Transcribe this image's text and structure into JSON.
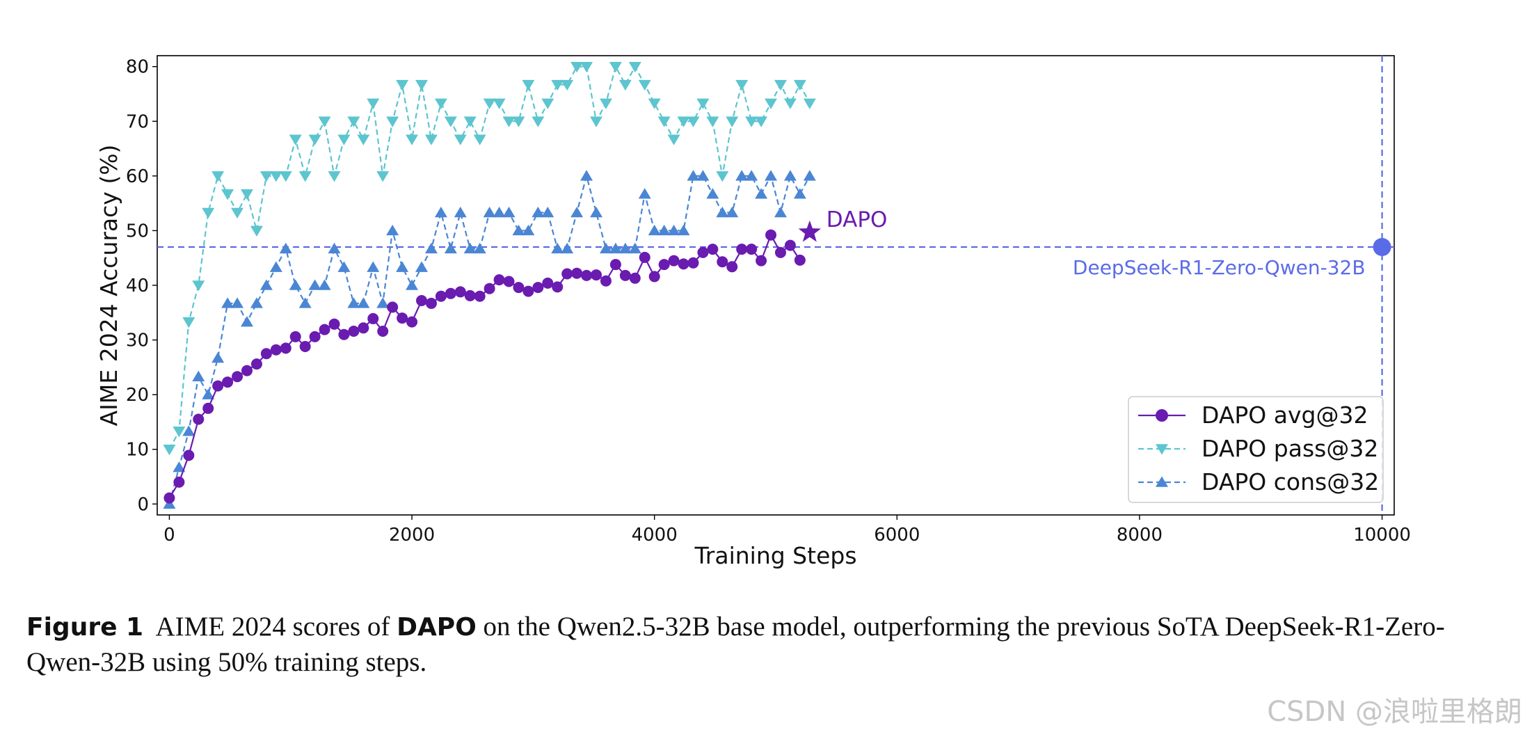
{
  "chart_data": {
    "type": "line",
    "xlabel": "Training Steps",
    "ylabel": "AIME 2024 Accuracy (%)",
    "xlim": [
      -100,
      10100
    ],
    "ylim": [
      -2,
      82
    ],
    "xticks": [
      0,
      2000,
      4000,
      6000,
      8000,
      10000
    ],
    "yticks": [
      0,
      10,
      20,
      30,
      40,
      50,
      60,
      70,
      80
    ],
    "legend_position": "lower-right",
    "series": [
      {
        "name": "DAPO avg@32",
        "color": "#6a1bb0",
        "marker": "circle",
        "linestyle": "solid",
        "x": [
          0,
          80,
          160,
          240,
          320,
          400,
          480,
          560,
          640,
          720,
          800,
          880,
          960,
          1040,
          1120,
          1200,
          1280,
          1360,
          1440,
          1520,
          1600,
          1680,
          1760,
          1840,
          1920,
          2000,
          2080,
          2160,
          2240,
          2320,
          2400,
          2480,
          2560,
          2640,
          2720,
          2800,
          2880,
          2960,
          3040,
          3120,
          3200,
          3280,
          3360,
          3440,
          3520,
          3600,
          3680,
          3760,
          3840,
          3920,
          4000,
          4080,
          4160,
          4240,
          4320,
          4400,
          4480,
          4560,
          4640,
          4720,
          4800,
          4880,
          4960,
          5040,
          5120,
          5200
        ],
        "y": [
          1.1,
          4.0,
          8.9,
          15.5,
          17.5,
          21.6,
          22.3,
          23.3,
          24.4,
          25.6,
          27.5,
          28.2,
          28.5,
          30.6,
          28.8,
          30.6,
          31.9,
          32.9,
          31.0,
          31.6,
          32.2,
          33.9,
          31.6,
          36.0,
          34.0,
          33.3,
          37.2,
          36.7,
          38.0,
          38.5,
          38.8,
          38.1,
          38.0,
          39.4,
          41.0,
          40.7,
          39.6,
          38.9,
          39.6,
          40.4,
          39.7,
          42.1,
          42.2,
          41.8,
          41.9,
          40.8,
          43.8,
          41.8,
          41.3,
          45.1,
          41.6,
          43.8,
          44.5,
          43.9,
          44.1,
          46.0,
          46.6,
          44.3,
          43.4,
          46.6,
          46.6,
          44.5,
          49.2,
          46.0,
          47.3,
          44.6
        ]
      },
      {
        "name": "DAPO pass@32",
        "color": "#5cc5cf",
        "marker": "triangle-down",
        "linestyle": "dashed",
        "x": [
          0,
          80,
          160,
          240,
          320,
          400,
          480,
          560,
          640,
          720,
          800,
          880,
          960,
          1040,
          1120,
          1200,
          1280,
          1360,
          1440,
          1520,
          1600,
          1680,
          1760,
          1840,
          1920,
          2000,
          2080,
          2160,
          2240,
          2320,
          2400,
          2480,
          2560,
          2640,
          2720,
          2800,
          2880,
          2960,
          3040,
          3120,
          3200,
          3280,
          3360,
          3440,
          3520,
          3600,
          3680,
          3760,
          3840,
          3920,
          4000,
          4080,
          4160,
          4240,
          4320,
          4400,
          4480,
          4560,
          4640,
          4720,
          4800,
          4880,
          4960,
          5040,
          5120,
          5200,
          5280
        ],
        "y": [
          10.0,
          13.3,
          33.3,
          40.0,
          53.3,
          60.0,
          56.7,
          53.3,
          56.7,
          50.0,
          60.0,
          60.0,
          60.0,
          66.7,
          60.0,
          66.7,
          70.0,
          60.0,
          66.7,
          70.0,
          66.7,
          73.3,
          60.0,
          70.0,
          76.7,
          66.7,
          76.7,
          66.7,
          73.3,
          70.0,
          66.7,
          70.0,
          66.7,
          73.3,
          73.3,
          70.0,
          70.0,
          76.7,
          70.0,
          73.3,
          76.7,
          76.7,
          80.0,
          80.0,
          70.0,
          73.3,
          80.0,
          76.7,
          80.0,
          76.7,
          73.3,
          70.0,
          66.7,
          70.0,
          70.0,
          73.3,
          70.0,
          60.0,
          70.0,
          76.7,
          70.0,
          70.0,
          73.3,
          76.7,
          73.3,
          76.7,
          73.3
        ]
      },
      {
        "name": "DAPO cons@32",
        "color": "#4a86d4",
        "marker": "triangle-up",
        "linestyle": "dashed",
        "x": [
          0,
          80,
          160,
          240,
          320,
          400,
          480,
          560,
          640,
          720,
          800,
          880,
          960,
          1040,
          1120,
          1200,
          1280,
          1360,
          1440,
          1520,
          1600,
          1680,
          1760,
          1840,
          1920,
          2000,
          2080,
          2160,
          2240,
          2320,
          2400,
          2480,
          2560,
          2640,
          2720,
          2800,
          2880,
          2960,
          3040,
          3120,
          3200,
          3280,
          3360,
          3440,
          3520,
          3600,
          3680,
          3760,
          3840,
          3920,
          4000,
          4080,
          4160,
          4240,
          4320,
          4400,
          4480,
          4560,
          4640,
          4720,
          4800,
          4880,
          4960,
          5040,
          5120,
          5200,
          5280
        ],
        "y": [
          0.0,
          6.7,
          13.3,
          23.3,
          20.0,
          26.7,
          36.7,
          36.7,
          33.3,
          36.7,
          40.0,
          43.3,
          46.7,
          40.0,
          36.7,
          40.0,
          40.0,
          46.7,
          43.3,
          36.7,
          36.7,
          43.3,
          36.7,
          50.0,
          43.3,
          40.0,
          43.3,
          46.7,
          53.3,
          46.7,
          53.3,
          46.7,
          46.7,
          53.3,
          53.3,
          53.3,
          50.0,
          50.0,
          53.3,
          53.3,
          46.7,
          46.7,
          53.3,
          60.0,
          53.3,
          46.7,
          46.7,
          46.7,
          46.7,
          56.7,
          50.0,
          50.0,
          50.0,
          50.0,
          60.0,
          60.0,
          56.7,
          53.3,
          53.3,
          60.0,
          60.0,
          56.7,
          60.0,
          53.3,
          60.0,
          56.7,
          60.0
        ]
      }
    ],
    "reference": {
      "label": "DeepSeek-R1-Zero-Qwen-32B",
      "x": 10000,
      "y": 47,
      "color": "#5a6be8"
    },
    "highlight": {
      "label": "DAPO",
      "x": 5280,
      "y": 49.7,
      "color": "#6a1bb0"
    }
  },
  "caption": {
    "figure_label": "Figure 1",
    "text_before": "AIME 2024 scores of",
    "bold_term": "DAPO",
    "text_after": "on the Qwen2.5-32B base model, outperforming the previous SoTA DeepSeek-R1-Zero-Qwen-32B using 50% training steps."
  },
  "watermark": "CSDN @浪啦里格朗"
}
